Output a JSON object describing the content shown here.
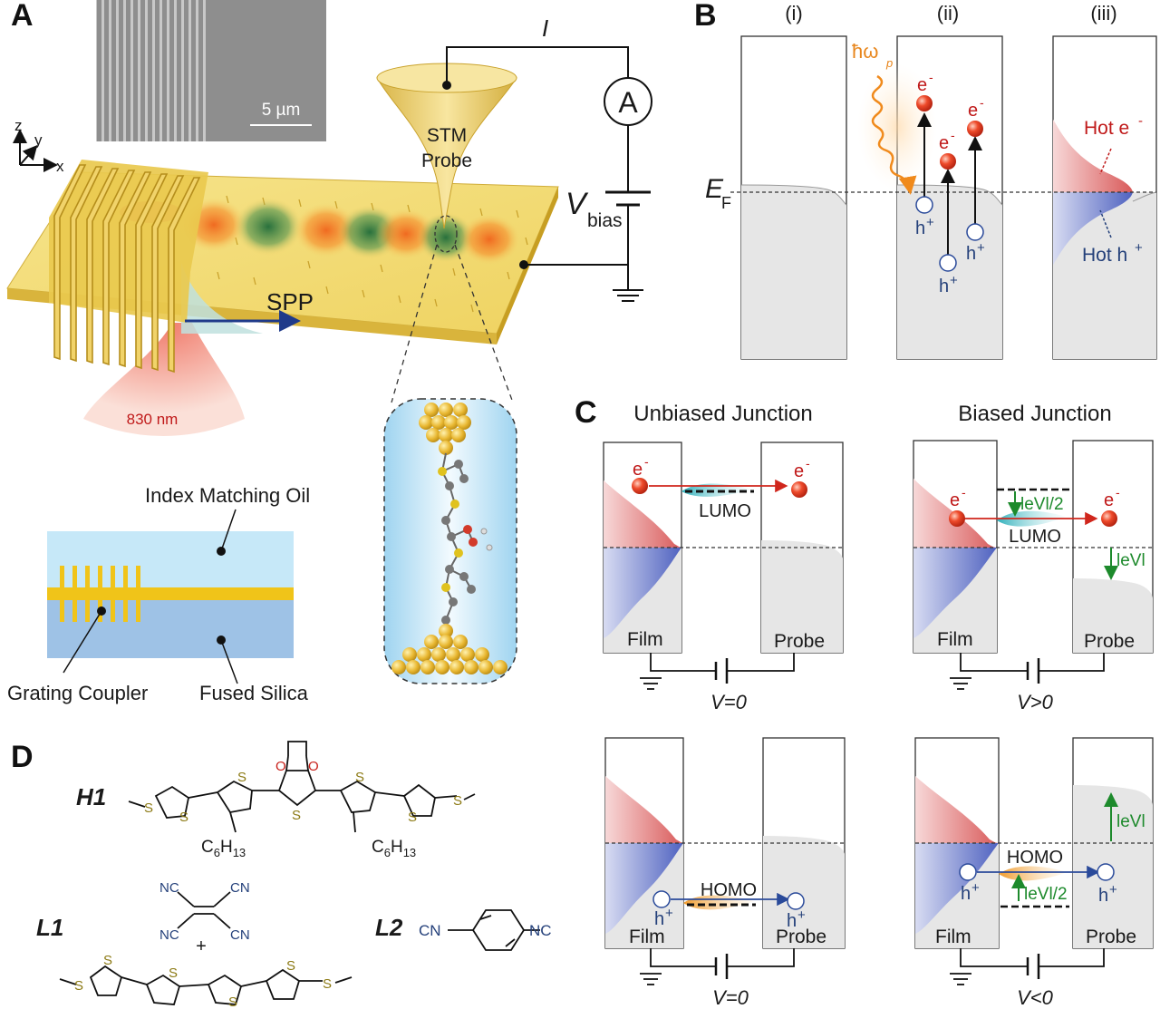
{
  "panels": {
    "A": {
      "letter": "A",
      "sem_scale": "5 µm",
      "axis_z": "z",
      "axis_y": "y",
      "axis_x": "x",
      "current": "I",
      "ammeter": "A",
      "stm_line1": "STM",
      "stm_line2": "Probe",
      "vbias_v": "V",
      "vbias_sub": "bias",
      "spp": "SPP",
      "laser": "830 nm",
      "index_oil": "Index Matching Oil",
      "grating": "Grating Coupler",
      "silica": "Fused Silica"
    },
    "B": {
      "letter": "B",
      "col_i": "(i)",
      "col_ii": "(ii)",
      "col_iii": "(iii)",
      "photon": "ħω",
      "photon_sub": "p",
      "ef": "E",
      "ef_sub": "F",
      "electron": "e",
      "minus": "-",
      "hole": "h",
      "plus": "+",
      "hot_e": "Hot e",
      "hot_h": "Hot h"
    },
    "C": {
      "letter": "C",
      "unbiased": "Unbiased Junction",
      "biased": "Biased Junction",
      "lumo": "LUMO",
      "homo": "HOMO",
      "film": "Film",
      "probe": "Probe",
      "v0": "V=0",
      "vpos": "V>0",
      "vneg": "V<0",
      "half_ev": "leVl/2",
      "ev": "leVl"
    },
    "D": {
      "letter": "D",
      "h1": "H1",
      "l1": "L1",
      "l2": "L2",
      "c6h13": "C6H13",
      "c6": "C",
      "c6_sub": "6",
      "h13": "H",
      "h13_sub": "13",
      "nc": "NC",
      "cn": "CN",
      "plus_sign": "+",
      "atom_s": "S",
      "atom_o": "O"
    }
  },
  "colors": {
    "gold": "#f1d36a",
    "gold_dark": "#c9a22c",
    "gray_fill": "#e6e6e6",
    "red_lobe": "#e98a8a",
    "blue_lobe": "#6f7fcc",
    "electron_red": "#e23a1e",
    "hole_blue": "#2a4a9a",
    "level_green": "#1d8a2c",
    "orange_photon": "#f08a1c",
    "lumo_cyan": "#5ec7cf",
    "homo_orange": "#f2a13a",
    "oil_blue": "#bfe3f5",
    "silica_blue": "#9cc2e6"
  }
}
